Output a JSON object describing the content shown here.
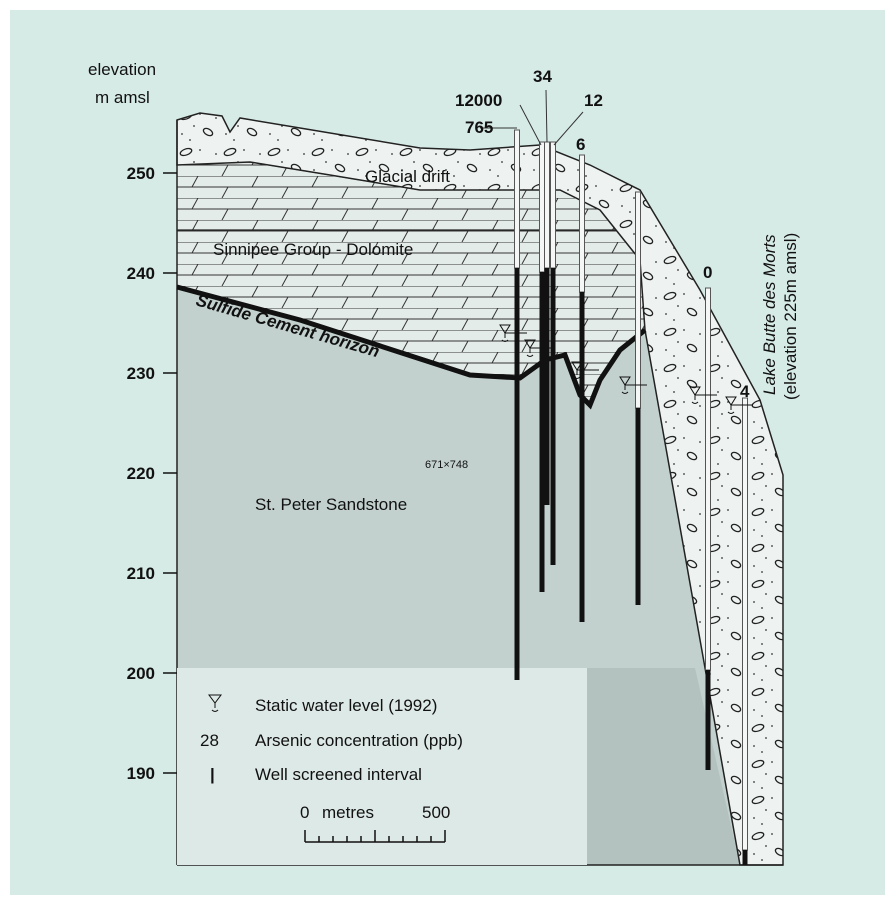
{
  "axis": {
    "title_line1": "elevation",
    "title_line2": "m amsl",
    "ticks": [
      250,
      240,
      230,
      220,
      210,
      200,
      190
    ]
  },
  "layers": {
    "drift": "Glacial drift",
    "dolomite": "Sinnipee Group - Dolomite",
    "sulfide": "Sulfide Cement horizon",
    "sandstone": "St. Peter Sandstone"
  },
  "size_note": "671×748",
  "wells": [
    765,
    12000,
    34,
    12,
    6,
    0,
    4
  ],
  "lake": {
    "name": "Lake Butte des Morts",
    "elevation": "(elevation 225m amsl)"
  },
  "legend": {
    "water_level": "Static water level (1992)",
    "arsenic_example": 28,
    "arsenic": "Arsenic concentration (ppb)",
    "screen_symbol": "|",
    "screen": "Well screened interval"
  },
  "scale": {
    "start": 0,
    "unit": "metres",
    "end": 500
  }
}
